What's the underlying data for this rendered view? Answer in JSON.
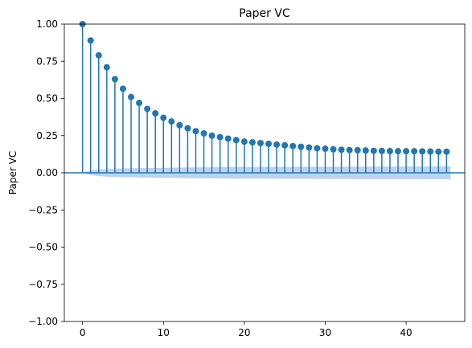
{
  "chart_data": {
    "type": "stem",
    "title": "Paper VC",
    "xlabel": "",
    "ylabel": "Paper VC",
    "xlim": [
      -2.25,
      47.25
    ],
    "ylim": [
      -1.0,
      1.0
    ],
    "x_ticks": [
      0,
      10,
      20,
      30,
      40
    ],
    "x_tick_labels": [
      "0",
      "10",
      "20",
      "30",
      "40"
    ],
    "y_ticks": [
      1.0,
      0.75,
      0.5,
      0.25,
      0.0,
      -0.25,
      -0.5,
      -0.75,
      -1.0
    ],
    "y_tick_labels": [
      "1.00",
      "0.75",
      "0.50",
      "0.25",
      "0.00",
      "−0.25",
      "−0.50",
      "−0.75",
      "−1.00"
    ],
    "grid": false,
    "lags": [
      0,
      1,
      2,
      3,
      4,
      5,
      6,
      7,
      8,
      9,
      10,
      11,
      12,
      13,
      14,
      15,
      16,
      17,
      18,
      19,
      20,
      21,
      22,
      23,
      24,
      25,
      26,
      27,
      28,
      29,
      30,
      31,
      32,
      33,
      34,
      35,
      36,
      37,
      38,
      39,
      40,
      41,
      42,
      43,
      44,
      45
    ],
    "values": [
      1.0,
      0.89,
      0.79,
      0.71,
      0.63,
      0.565,
      0.51,
      0.47,
      0.43,
      0.4,
      0.37,
      0.345,
      0.32,
      0.3,
      0.28,
      0.265,
      0.25,
      0.24,
      0.23,
      0.22,
      0.21,
      0.205,
      0.2,
      0.195,
      0.19,
      0.185,
      0.18,
      0.175,
      0.17,
      0.165,
      0.162,
      0.158,
      0.155,
      0.153,
      0.152,
      0.15,
      0.148,
      0.147,
      0.146,
      0.145,
      0.145,
      0.145,
      0.144,
      0.143,
      0.142,
      0.142
    ],
    "confidence_band": {
      "x": [
        0,
        1,
        2,
        3,
        5,
        10,
        15,
        20,
        25,
        30,
        35,
        40,
        45.5
      ],
      "upper": [
        0.0,
        0.015,
        0.022,
        0.026,
        0.03,
        0.034,
        0.037,
        0.039,
        0.04,
        0.041,
        0.042,
        0.042,
        0.043
      ],
      "lower": [
        0.0,
        -0.015,
        -0.022,
        -0.026,
        -0.03,
        -0.034,
        -0.037,
        -0.039,
        -0.04,
        -0.041,
        -0.042,
        -0.042,
        -0.043
      ]
    },
    "colors": {
      "stem": "#1f77b4",
      "marker": "#1f77b4",
      "band": "#aec7e8",
      "zero_line": "#1f77b4"
    }
  }
}
